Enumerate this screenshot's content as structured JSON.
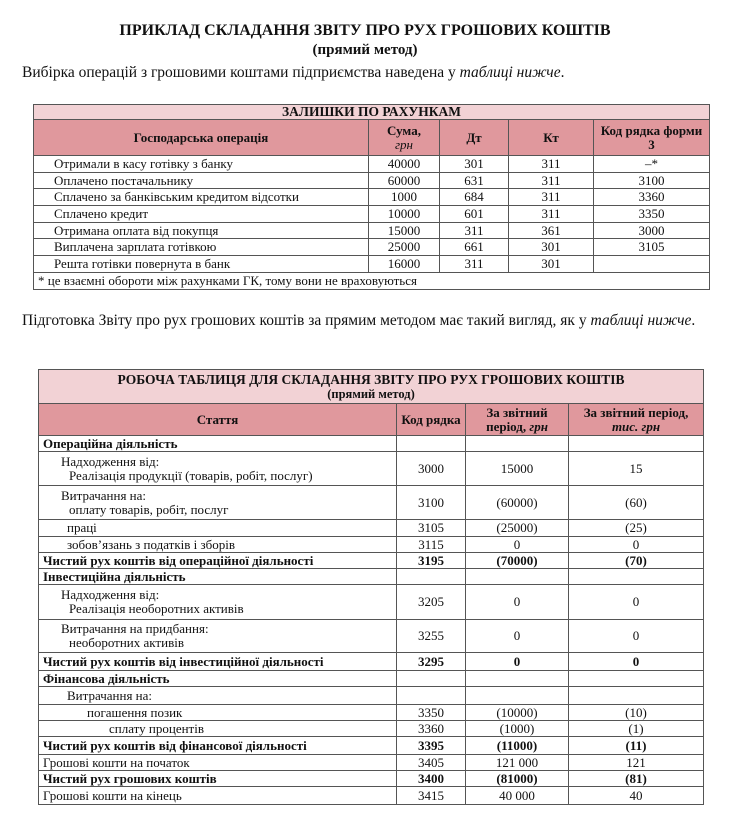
{
  "title": "ПРИКЛАД СКЛАДАННЯ ЗВІТУ ПРО РУХ ГРОШОВИХ КОШТІВ",
  "subtitle": "(прямий метод)",
  "intro": {
    "text": "Вибірка операцій з грошовими коштами підприємства наведена у ",
    "em": "таблиці нижче",
    "end": "."
  },
  "table1": {
    "title": "ЗАЛИШКИ ПО РАХУНКАМ",
    "headers": [
      "Господарська операція",
      "Сума,",
      "грн",
      "Дт",
      "Кт",
      "Код рядка форми 3"
    ],
    "rows": [
      [
        "Отримали в касу готівку з банку",
        "40000",
        "301",
        "311",
        "–*"
      ],
      [
        "Оплачено постачальнику",
        "60000",
        "631",
        "311",
        "3100"
      ],
      [
        "Сплачено за банківським кредитом відсотки",
        "1000",
        "684",
        "311",
        "3360"
      ],
      [
        "Сплачено кредит",
        "10000",
        "601",
        "311",
        "3350"
      ],
      [
        "Отримана оплата від покупця",
        "15000",
        "311",
        "361",
        "3000"
      ],
      [
        "Виплачена зарплата готівкою",
        "25000",
        "661",
        "301",
        "3105"
      ],
      [
        "Решта готівки повернута в банк",
        "16000",
        "311",
        "301",
        ""
      ]
    ],
    "footnote": "* це взаємні обороти між рахунками ГК, тому вони не враховуються"
  },
  "para2": {
    "text": "Підготовка Звіту про рух грошових коштів за прямим методом має такий вигляд, як у ",
    "em": "таблиці нижче",
    "end": "."
  },
  "table2": {
    "title": "РОБОЧА ТАБЛИЦЯ ДЛЯ СКЛАДАННЯ ЗВІТУ ПРО РУХ ГРОШОВИХ КОШТІВ",
    "subtitle": "(прямий метод)",
    "headers": {
      "item": "Стаття",
      "code": "Код рядка",
      "uah": "За звітний період,",
      "uah_unit": "грн",
      "kuah": "За звітний період,",
      "kuah_unit": "тис. грн"
    },
    "rows": [
      {
        "l1": "Операційна діяльність",
        "style": "b",
        "code": "",
        "uah": "",
        "kuah": ""
      },
      {
        "l1": "Надходження від:",
        "l2": "Реалізація продукції (товарів, робіт, послуг)",
        "style": "i1",
        "code": "3000",
        "uah": "15000",
        "kuah": "15"
      },
      {
        "l1": "Витрачання на:",
        "l2": "оплату товарів, робіт, послуг",
        "style": "i1",
        "code": "3100",
        "uah": "(60000)",
        "kuah": "(60)"
      },
      {
        "l1": "праці",
        "style": "i2",
        "code": "3105",
        "uah": "(25000)",
        "kuah": "(25)"
      },
      {
        "l1": "зобов’язань з податків і зборів",
        "style": "i2",
        "code": "3115",
        "uah": "0",
        "kuah": "0"
      },
      {
        "l1": "Чистий рух коштів від операційної діяльності",
        "style": "b",
        "code": "3195",
        "uah": "(70000)",
        "kuah": "(70)"
      },
      {
        "l1": "Інвестиційна діяльність",
        "style": "b",
        "code": "",
        "uah": "",
        "kuah": ""
      },
      {
        "l1": "Надходження від:",
        "l2": "Реалізація необоротних активів",
        "style": "i1",
        "code": "3205",
        "uah": "0",
        "kuah": "0"
      },
      {
        "l1": "Витрачання на придбання:",
        "l2": "необоротних активів",
        "style": "i1",
        "code": "3255",
        "uah": "0",
        "kuah": "0"
      },
      {
        "l1": "Чистий рух коштів від інвестиційної діяльності",
        "style": "b",
        "code": "3295",
        "uah": "0",
        "kuah": "0"
      },
      {
        "l1": "Фінансова діяльність",
        "style": "b",
        "code": "",
        "uah": "",
        "kuah": ""
      },
      {
        "l1": "Витрачання на:",
        "style": "i2",
        "code": "",
        "uah": "",
        "kuah": ""
      },
      {
        "l1": "погашення позик",
        "style": "i3",
        "code": "3350",
        "uah": "(10000)",
        "kuah": "(10)"
      },
      {
        "l1": "сплату процентів",
        "style": "i4",
        "code": "3360",
        "uah": "(1000)",
        "kuah": "(1)"
      },
      {
        "l1": "Чистий рух коштів від фінансової діяльності",
        "style": "b",
        "code": "3395",
        "uah": "(11000)",
        "kuah": "(11)"
      },
      {
        "l1": "Грошові кошти на початок",
        "style": "",
        "code": "3405",
        "uah": "121 000",
        "kuah": "121"
      },
      {
        "l1": "Чистий рух грошових коштів",
        "style": "b",
        "code": "3400",
        "uah": "(81000)",
        "kuah": "(81)"
      },
      {
        "l1": "Грошові кошти на кінець",
        "style": "",
        "code": "3415",
        "uah": "40 000",
        "kuah": "40"
      }
    ]
  },
  "colors": {
    "title_bg": "#f2d2d5",
    "header_bg": "#e0989d"
  }
}
